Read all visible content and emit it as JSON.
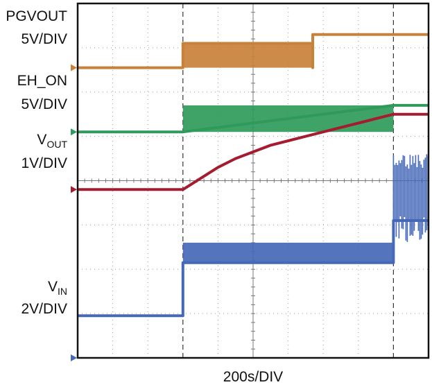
{
  "chart_data": {
    "type": "line",
    "title": "",
    "xlabel": "200s/DIV",
    "x_divisions": 10,
    "y_divisions": 8,
    "grid": true,
    "cursor_divisions": [
      3,
      9
    ],
    "colors": {
      "pgvout": "#c8813a",
      "eh_on": "#2f9a5a",
      "vout": "#a51c30",
      "vin": "#4568b8"
    },
    "series": [
      {
        "name": "PGVOUT",
        "scale": "5V/DIV",
        "color_key": "pgvout",
        "ground_div": 6.55,
        "points_div": [
          [
            0,
            6.55
          ],
          [
            3.0,
            6.55
          ],
          [
            3.0,
            7.1
          ],
          [
            6.7,
            7.1
          ],
          [
            6.7,
            6.65
          ],
          [
            6.7,
            6.55
          ],
          [
            6.7,
            7.3
          ],
          [
            10,
            7.3
          ]
        ],
        "noise_band_div": [
          [
            3.0,
            6.7,
            7.1,
            6.55
          ]
        ]
      },
      {
        "name": "EH_ON",
        "scale": "5V/DIV",
        "color_key": "eh_on",
        "ground_div": 5.1,
        "noise_band_div": [
          [
            3.0,
            9.0,
            5.7,
            5.1
          ]
        ],
        "points_div": [
          [
            0,
            5.1
          ],
          [
            3.0,
            5.1
          ],
          [
            9.0,
            5.7
          ],
          [
            10,
            5.7
          ]
        ]
      },
      {
        "name": "VOUT",
        "scale": "1V/DIV",
        "color_key": "vout",
        "ground_div": 3.8,
        "points_div": [
          [
            0,
            3.8
          ],
          [
            3.0,
            3.8
          ],
          [
            3.5,
            4.05
          ],
          [
            4.0,
            4.3
          ],
          [
            4.5,
            4.5
          ],
          [
            5.0,
            4.65
          ],
          [
            5.5,
            4.8
          ],
          [
            6.0,
            4.9
          ],
          [
            6.5,
            5.0
          ],
          [
            7.0,
            5.1
          ],
          [
            7.5,
            5.2
          ],
          [
            8.0,
            5.3
          ],
          [
            8.5,
            5.4
          ],
          [
            9.0,
            5.5
          ],
          [
            10,
            5.5
          ]
        ]
      },
      {
        "name": "VIN",
        "scale": "2V/DIV",
        "color_key": "vin",
        "ground_div": 0,
        "points_div": [
          [
            0,
            0.95
          ],
          [
            3.0,
            0.95
          ],
          [
            3.0,
            2.15
          ],
          [
            9.0,
            2.15
          ],
          [
            9.0,
            3.1
          ],
          [
            10,
            3.1
          ]
        ],
        "noise_band_div": [
          [
            3.0,
            9.0,
            2.15,
            2.6
          ]
        ]
      }
    ]
  },
  "labels": {
    "pgvout_name": "PGVOUT",
    "pgvout_scale": "5V/DIV",
    "ehon_name": "EH_ON",
    "ehon_scale": "5V/DIV",
    "vout_main": "V",
    "vout_sub": "OUT",
    "vout_scale": "1V/DIV",
    "vin_main": "V",
    "vin_sub": "IN",
    "vin_scale": "2V/DIV",
    "time_scale": "200s/DIV"
  }
}
